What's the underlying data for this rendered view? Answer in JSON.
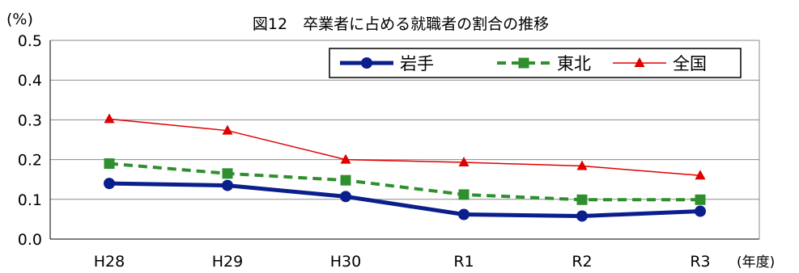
{
  "chart_data": {
    "type": "line",
    "title": "図12　卒業者に占める就職者の割合の推移",
    "y_unit_label": "(%)",
    "x_unit_label": "(年度)",
    "categories": [
      "H28",
      "H29",
      "H30",
      "R1",
      "R2",
      "R3"
    ],
    "ylim": [
      0,
      0.5
    ],
    "yticks": [
      "0.0",
      "0.1",
      "0.2",
      "0.3",
      "0.4",
      "0.5"
    ],
    "grid": true,
    "legend_position": "top-right",
    "series": [
      {
        "name": "岩手",
        "values": [
          0.14,
          0.135,
          0.107,
          0.062,
          0.058,
          0.07
        ],
        "color": "#0b1f8c",
        "marker": "circle",
        "line": "solid-thick"
      },
      {
        "name": "東北",
        "values": [
          0.19,
          0.165,
          0.148,
          0.112,
          0.099,
          0.099
        ],
        "color": "#2f8f2f",
        "marker": "square",
        "line": "dashed"
      },
      {
        "name": "全国",
        "values": [
          0.302,
          0.273,
          0.2,
          0.193,
          0.184,
          0.16
        ],
        "color": "#e00000",
        "marker": "triangle",
        "line": "solid-thin"
      }
    ]
  }
}
